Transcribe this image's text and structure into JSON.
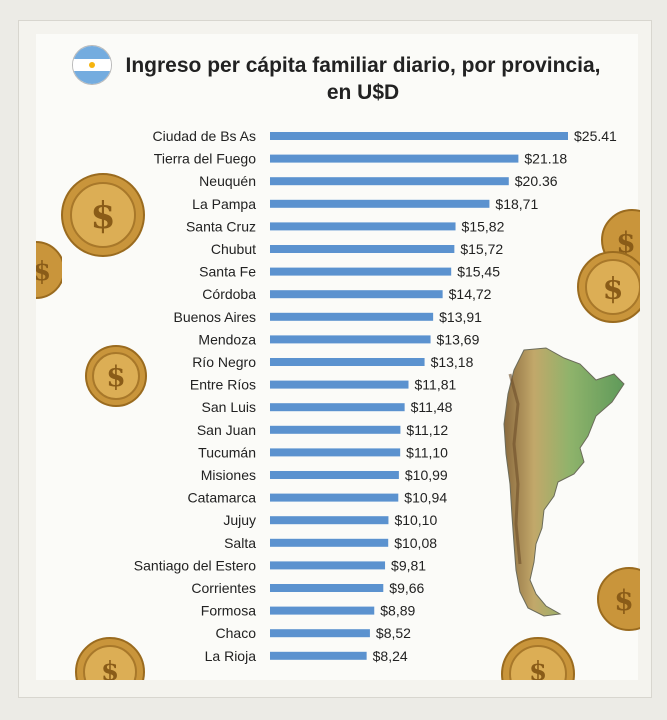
{
  "title_line1": "Ingreso per cápita familiar diario, por provincia,",
  "title_line2": "en U$D",
  "colors": {
    "bar": "#5b92cf",
    "text": "#222222",
    "coin": "#d3a144"
  },
  "chart_data": {
    "type": "bar",
    "orientation": "horizontal",
    "title": "Ingreso per cápita familiar diario, por provincia, en U$D",
    "categories": [
      "Ciudad de Bs As",
      "Tierra del Fuego",
      "Neuquén",
      "La Pampa",
      "Santa Cruz",
      "Chubut",
      "Santa Fe",
      "Córdoba",
      "Buenos Aires",
      "Mendoza",
      "Río Negro",
      "Entre Ríos",
      "San Luis",
      "San Juan",
      "Tucumán",
      "Misiones",
      "Catamarca",
      "Jujuy",
      "Salta",
      "Santiago del Estero",
      "Corrientes",
      "Formosa",
      "Chaco",
      "La Rioja"
    ],
    "values": [
      25.41,
      21.18,
      20.36,
      18.71,
      15.82,
      15.72,
      15.45,
      14.72,
      13.91,
      13.69,
      13.18,
      11.81,
      11.48,
      11.12,
      11.1,
      10.99,
      10.94,
      10.1,
      10.08,
      9.81,
      9.66,
      8.89,
      8.52,
      8.24
    ],
    "labels": [
      "$25.41",
      "$21.18",
      "$20.36",
      "$18,71",
      "$15,82",
      "$15,72",
      "$15,45",
      "$14,72",
      "$13,91",
      "$13,69",
      "$13,18",
      "$11,81",
      "$11,48",
      "$11,12",
      "$11,10",
      "$10,99",
      "$10,94",
      "$10,10",
      "$10,08",
      "$9,81",
      "$9,66",
      "$8,89",
      "$8,52",
      "$8,24"
    ],
    "xlim": [
      0,
      25.41
    ],
    "grid": false,
    "legend": "none"
  }
}
